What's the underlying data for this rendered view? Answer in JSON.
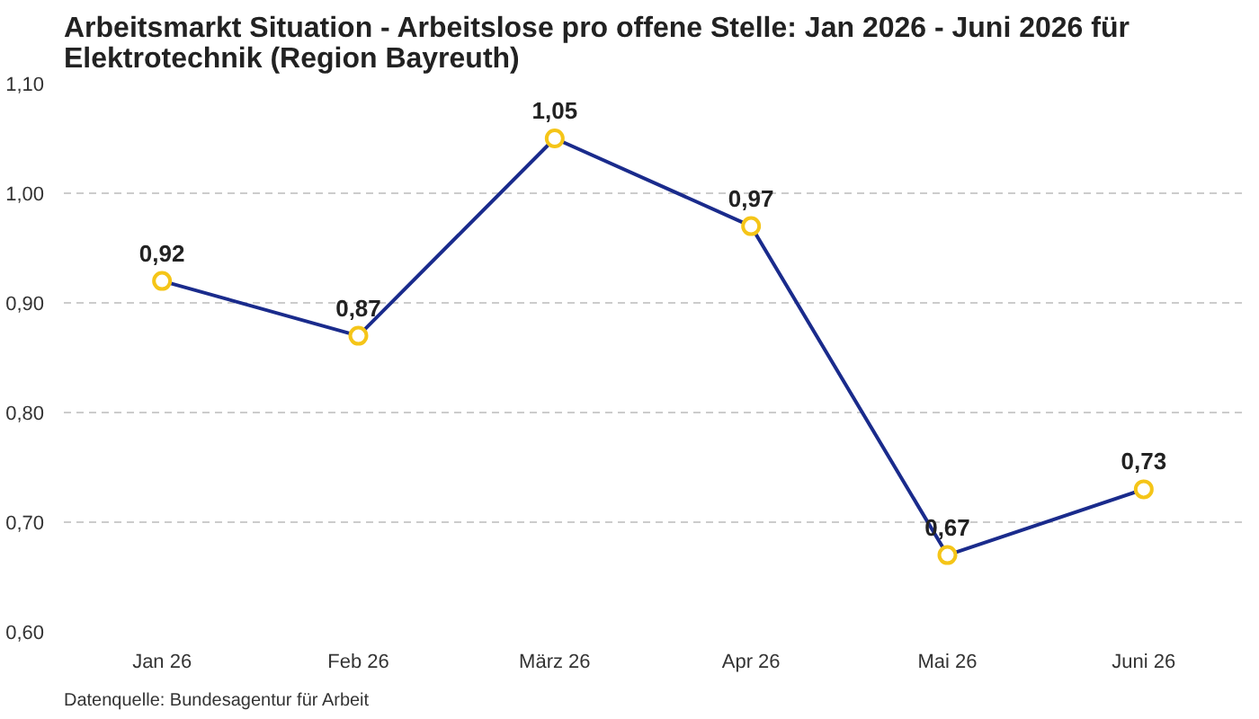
{
  "chart_data": {
    "type": "line",
    "title": "Arbeitsmarkt Situation - Arbeitslose pro offene Stelle: Jan 2026 - Juni 2026 für Elektrotechnik (Region Bayreuth)",
    "categories": [
      "Jan 26",
      "Feb 26",
      "März 26",
      "Apr 26",
      "Mai 26",
      "Juni 26"
    ],
    "series": [
      {
        "color": "#1a2b8c",
        "values": [
          0.92,
          0.87,
          1.05,
          0.97,
          0.67,
          0.73
        ],
        "value_labels": [
          "0,92",
          "0,87",
          "1,05",
          "0,97",
          "0,67",
          "0,73"
        ]
      }
    ],
    "ylim": [
      0.6,
      1.1
    ],
    "yticks": [
      {
        "value": 0.6,
        "label": "0,60"
      },
      {
        "value": 0.7,
        "label": "0,70"
      },
      {
        "value": 0.8,
        "label": "0,80"
      },
      {
        "value": 0.9,
        "label": "0,90"
      },
      {
        "value": 1.0,
        "label": "1,00"
      },
      {
        "value": 1.1,
        "label": "1,10"
      }
    ],
    "grid": "y",
    "marker": "circle",
    "line_style": "solid",
    "annotations": [
      "Datenquelle: Bundesagentur für Arbeit"
    ]
  }
}
